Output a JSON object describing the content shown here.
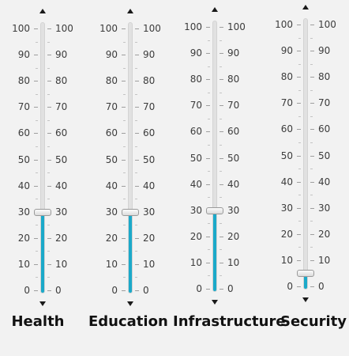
{
  "scale": {
    "min": 0,
    "max": 100,
    "major_ticks": [
      "0",
      "10",
      "20",
      "30",
      "40",
      "50",
      "60",
      "70",
      "80",
      "90",
      "100"
    ]
  },
  "colors": {
    "fill": "#1ba9c9",
    "track": "#e1e1e1",
    "background": "#f2f2f2"
  },
  "icons": {
    "up": "triangle-up-icon",
    "down": "triangle-down-icon"
  },
  "sliders": [
    {
      "id": "health",
      "label": "Health",
      "value": 30
    },
    {
      "id": "education",
      "label": "Education",
      "value": 30
    },
    {
      "id": "infrastructure",
      "label": "Infrastructure",
      "value": 30
    },
    {
      "id": "security",
      "label": "Security",
      "value": 5
    }
  ]
}
